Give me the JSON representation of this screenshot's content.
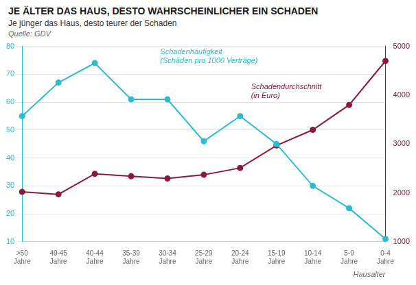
{
  "chart_data": {
    "type": "line",
    "title": "JE ÄLTER DAS HAUS, DESTO WAHRSCHEINLICHER EIN SCHADEN",
    "subtitle": "Je jünger das Haus, desto teurer der Schaden",
    "source": "Quelle: GDV",
    "xlabel": "Hausalter",
    "categories": [
      ">50\nJahre",
      "49-45\nJahre",
      "40-44\nJahre",
      "35-39\nJahre",
      "30-34\nJahre",
      "25-29\nJahre",
      "20-24\nJahre",
      "15-19\nJahre",
      "10-14\nJahre",
      "5-9\nJahre",
      "0-4\nJahre"
    ],
    "series": [
      {
        "name": "Schadenhäufigkeit\n(Schäden pro 1000 Verträge)",
        "color": "#2bbcd4",
        "marker": "circle",
        "values": [
          55,
          67,
          74,
          61,
          61,
          46,
          55,
          45,
          30,
          22,
          11
        ]
      },
      {
        "name": "Schadendurchschnitt\n(in Euro)",
        "color": "#8b1a3a",
        "marker": "circle",
        "axis": "y2",
        "values": [
          2020,
          1970,
          2390,
          2340,
          2295,
          2370,
          2510,
          2970,
          3290,
          3800,
          4700
        ]
      }
    ],
    "ylim": [
      10,
      80
    ],
    "yticks": [
      10,
      20,
      30,
      40,
      50,
      60,
      70,
      80
    ],
    "y2lim": [
      1000,
      5000
    ],
    "y2ticks": [
      1000,
      2000,
      3000,
      4000,
      5000
    ],
    "grid": true
  }
}
